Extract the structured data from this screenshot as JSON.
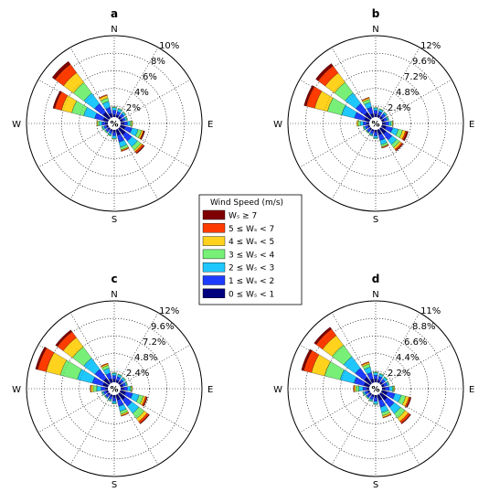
{
  "colors": {
    "bins": [
      "#00007f",
      "#1e3cff",
      "#1ec8ff",
      "#78f078",
      "#ffd21e",
      "#ff3c00",
      "#7f0000"
    ]
  },
  "legend": {
    "title": "Wind Speed (m/s)",
    "items": [
      {
        "label": "Wₛ ≥ 7",
        "bin": 6
      },
      {
        "label": "5 ≤ Wₛ < 7",
        "bin": 5
      },
      {
        "label": "4 ≤ Wₛ < 5",
        "bin": 4
      },
      {
        "label": "3 ≤ Wₛ < 4",
        "bin": 3
      },
      {
        "label": "2 ≤ Wₛ < 3",
        "bin": 2
      },
      {
        "label": "1 ≤ Wₛ < 2",
        "bin": 1
      },
      {
        "label": "0 ≤ Wₛ < 1",
        "bin": 0
      }
    ]
  },
  "directions": [
    "N",
    "E",
    "S",
    "W"
  ],
  "center_label": "%",
  "chart_data": [
    {
      "type": "windrose",
      "panel": "a",
      "ring_labels": [
        "2%",
        "4%",
        "6%",
        "8%",
        "10%"
      ],
      "rmax": 10,
      "sectors": [
        {
          "dir": 0,
          "cum": [
            1.0,
            1.5,
            1.8,
            1.9,
            1.9,
            1.9,
            1.9
          ]
        },
        {
          "dir": 22.5,
          "cum": [
            1.0,
            1.4,
            1.7,
            1.8,
            1.8,
            1.8,
            1.8
          ]
        },
        {
          "dir": 45,
          "cum": [
            1.0,
            1.4,
            1.6,
            1.7,
            1.7,
            1.7,
            1.7
          ]
        },
        {
          "dir": 67.5,
          "cum": [
            1.0,
            1.3,
            1.5,
            1.6,
            1.6,
            1.6,
            1.6
          ]
        },
        {
          "dir": 90,
          "cum": [
            1.1,
            1.5,
            1.8,
            2.0,
            2.1,
            2.1,
            2.1
          ]
        },
        {
          "dir": 112.5,
          "cum": [
            1.3,
            2.1,
            2.8,
            3.2,
            3.4,
            3.5,
            3.6
          ]
        },
        {
          "dir": 135,
          "cum": [
            1.6,
            2.5,
            3.3,
            3.8,
            4.0,
            4.2,
            4.3
          ]
        },
        {
          "dir": 157.5,
          "cum": [
            1.4,
            2.2,
            2.8,
            3.1,
            3.2,
            3.3,
            3.3
          ]
        },
        {
          "dir": 180,
          "cum": [
            1.0,
            1.4,
            1.7,
            1.8,
            1.8,
            1.8,
            1.8
          ]
        },
        {
          "dir": 202.5,
          "cum": [
            0.9,
            1.2,
            1.4,
            1.5,
            1.5,
            1.5,
            1.5
          ]
        },
        {
          "dir": 225,
          "cum": [
            0.9,
            1.2,
            1.3,
            1.4,
            1.4,
            1.4,
            1.4
          ]
        },
        {
          "dir": 247.5,
          "cum": [
            0.9,
            1.2,
            1.4,
            1.5,
            1.5,
            1.5,
            1.5
          ]
        },
        {
          "dir": 270,
          "cum": [
            1.0,
            1.4,
            1.7,
            1.9,
            2.0,
            2.0,
            2.0
          ]
        },
        {
          "dir": 292.5,
          "cum": [
            1.3,
            2.3,
            3.6,
            5.0,
            6.2,
            7.0,
            7.2
          ]
        },
        {
          "dir": 315,
          "cum": [
            1.6,
            2.8,
            4.3,
            5.8,
            7.2,
            8.4,
            8.8
          ]
        },
        {
          "dir": 337.5,
          "cum": [
            1.2,
            1.9,
            2.6,
            3.0,
            3.3,
            3.4,
            3.4
          ]
        }
      ]
    },
    {
      "type": "windrose",
      "panel": "b",
      "ring_labels": [
        "2.4%",
        "4.8%",
        "7.2%",
        "9.6%",
        "12%"
      ],
      "rmax": 12,
      "sectors": [
        {
          "dir": 0,
          "cum": [
            1.3,
            1.8,
            2.1,
            2.2,
            2.2,
            2.2,
            2.2
          ]
        },
        {
          "dir": 22.5,
          "cum": [
            1.2,
            1.7,
            2.0,
            2.1,
            2.1,
            2.1,
            2.1
          ]
        },
        {
          "dir": 45,
          "cum": [
            1.2,
            1.7,
            1.9,
            2.0,
            2.0,
            2.0,
            2.0
          ]
        },
        {
          "dir": 67.5,
          "cum": [
            1.2,
            1.6,
            1.8,
            1.9,
            1.9,
            1.9,
            1.9
          ]
        },
        {
          "dir": 90,
          "cum": [
            1.3,
            1.8,
            2.1,
            2.3,
            2.4,
            2.4,
            2.4
          ]
        },
        {
          "dir": 112.5,
          "cum": [
            1.5,
            2.4,
            3.2,
            3.8,
            4.2,
            4.4,
            4.6
          ]
        },
        {
          "dir": 135,
          "cum": [
            1.8,
            2.8,
            3.6,
            4.1,
            4.4,
            4.6,
            4.7
          ]
        },
        {
          "dir": 157.5,
          "cum": [
            1.6,
            2.4,
            3.0,
            3.3,
            3.4,
            3.5,
            3.5
          ]
        },
        {
          "dir": 180,
          "cum": [
            1.2,
            1.7,
            2.0,
            2.1,
            2.1,
            2.1,
            2.1
          ]
        },
        {
          "dir": 202.5,
          "cum": [
            1.1,
            1.5,
            1.7,
            1.8,
            1.8,
            1.8,
            1.8
          ]
        },
        {
          "dir": 225,
          "cum": [
            1.1,
            1.5,
            1.6,
            1.7,
            1.7,
            1.7,
            1.7
          ]
        },
        {
          "dir": 247.5,
          "cum": [
            1.1,
            1.5,
            1.7,
            1.8,
            1.8,
            1.8,
            1.8
          ]
        },
        {
          "dir": 270,
          "cum": [
            1.2,
            1.7,
            2.1,
            2.4,
            2.6,
            2.6,
            2.6
          ]
        },
        {
          "dir": 292.5,
          "cum": [
            1.6,
            3.0,
            4.8,
            6.8,
            8.6,
            9.8,
            10.1
          ]
        },
        {
          "dir": 315,
          "cum": [
            1.9,
            3.4,
            5.2,
            7.0,
            8.6,
            9.8,
            10.2
          ]
        },
        {
          "dir": 337.5,
          "cum": [
            1.4,
            2.3,
            3.0,
            3.4,
            3.6,
            3.7,
            3.7
          ]
        }
      ]
    },
    {
      "type": "windrose",
      "panel": "c",
      "ring_labels": [
        "2.4%",
        "4.8%",
        "7.2%",
        "9.6%",
        "12%"
      ],
      "rmax": 12,
      "sectors": [
        {
          "dir": 0,
          "cum": [
            1.3,
            1.8,
            2.1,
            2.2,
            2.2,
            2.2,
            2.2
          ]
        },
        {
          "dir": 22.5,
          "cum": [
            1.2,
            1.7,
            2.0,
            2.1,
            2.1,
            2.1,
            2.1
          ]
        },
        {
          "dir": 45,
          "cum": [
            1.2,
            1.6,
            1.9,
            2.0,
            2.0,
            2.0,
            2.0
          ]
        },
        {
          "dir": 67.5,
          "cum": [
            1.2,
            1.6,
            1.8,
            1.9,
            1.9,
            1.9,
            1.9
          ]
        },
        {
          "dir": 90,
          "cum": [
            1.3,
            1.8,
            2.2,
            2.4,
            2.5,
            2.5,
            2.5
          ]
        },
        {
          "dir": 112.5,
          "cum": [
            1.6,
            2.6,
            3.5,
            4.1,
            4.4,
            4.6,
            4.7
          ]
        },
        {
          "dir": 135,
          "cum": [
            1.9,
            3.0,
            4.2,
            5.1,
            5.6,
            5.9,
            6.0
          ]
        },
        {
          "dir": 157.5,
          "cum": [
            1.6,
            2.5,
            3.2,
            3.6,
            3.8,
            3.9,
            3.9
          ]
        },
        {
          "dir": 180,
          "cum": [
            1.2,
            1.7,
            2.0,
            2.1,
            2.1,
            2.1,
            2.1
          ]
        },
        {
          "dir": 202.5,
          "cum": [
            1.1,
            1.5,
            1.7,
            1.8,
            1.8,
            1.8,
            1.8
          ]
        },
        {
          "dir": 225,
          "cum": [
            1.1,
            1.5,
            1.6,
            1.7,
            1.7,
            1.7,
            1.7
          ]
        },
        {
          "dir": 247.5,
          "cum": [
            1.1,
            1.5,
            1.7,
            1.8,
            1.8,
            1.8,
            1.8
          ]
        },
        {
          "dir": 270,
          "cum": [
            1.2,
            1.8,
            2.4,
            2.9,
            3.2,
            3.3,
            3.3
          ]
        },
        {
          "dir": 292.5,
          "cum": [
            1.6,
            3.1,
            5.2,
            7.6,
            9.6,
            10.8,
            11.1
          ]
        },
        {
          "dir": 315,
          "cum": [
            1.8,
            3.3,
            5.2,
            7.1,
            8.7,
            9.7,
            10.0
          ]
        },
        {
          "dir": 337.5,
          "cum": [
            1.4,
            2.2,
            2.9,
            3.3,
            3.5,
            3.6,
            3.6
          ]
        }
      ]
    },
    {
      "type": "windrose",
      "panel": "d",
      "ring_labels": [
        "2.2%",
        "4.4%",
        "6.6%",
        "8.8%",
        "11%"
      ],
      "rmax": 11,
      "sectors": [
        {
          "dir": 0,
          "cum": [
            1.2,
            1.7,
            2.0,
            2.1,
            2.1,
            2.1,
            2.1
          ]
        },
        {
          "dir": 22.5,
          "cum": [
            1.1,
            1.6,
            1.9,
            2.0,
            2.0,
            2.0,
            2.0
          ]
        },
        {
          "dir": 45,
          "cum": [
            1.1,
            1.5,
            1.8,
            1.9,
            1.9,
            1.9,
            1.9
          ]
        },
        {
          "dir": 67.5,
          "cum": [
            1.1,
            1.5,
            1.7,
            1.8,
            1.8,
            1.8,
            1.8
          ]
        },
        {
          "dir": 90,
          "cum": [
            1.2,
            1.7,
            2.1,
            2.3,
            2.4,
            2.4,
            2.4
          ]
        },
        {
          "dir": 112.5,
          "cum": [
            1.5,
            2.5,
            3.3,
            3.9,
            4.3,
            4.5,
            4.6
          ]
        },
        {
          "dir": 135,
          "cum": [
            1.8,
            2.9,
            3.9,
            4.6,
            5.1,
            5.4,
            5.5
          ]
        },
        {
          "dir": 157.5,
          "cum": [
            1.5,
            2.4,
            3.1,
            3.5,
            3.7,
            3.8,
            3.8
          ]
        },
        {
          "dir": 180,
          "cum": [
            1.1,
            1.6,
            1.9,
            2.0,
            2.0,
            2.0,
            2.0
          ]
        },
        {
          "dir": 202.5,
          "cum": [
            1.0,
            1.4,
            1.6,
            1.7,
            1.7,
            1.7,
            1.7
          ]
        },
        {
          "dir": 225,
          "cum": [
            1.0,
            1.4,
            1.5,
            1.6,
            1.6,
            1.6,
            1.6
          ]
        },
        {
          "dir": 247.5,
          "cum": [
            1.0,
            1.4,
            1.6,
            1.7,
            1.7,
            1.7,
            1.7
          ]
        },
        {
          "dir": 270,
          "cum": [
            1.1,
            1.6,
            2.1,
            2.5,
            2.7,
            2.8,
            2.8
          ]
        },
        {
          "dir": 292.5,
          "cum": [
            1.5,
            2.8,
            4.6,
            6.6,
            8.3,
            9.3,
            9.6
          ]
        },
        {
          "dir": 315,
          "cum": [
            1.8,
            3.2,
            5.0,
            6.8,
            8.3,
            9.3,
            9.6
          ]
        },
        {
          "dir": 337.5,
          "cum": [
            1.3,
            2.1,
            2.8,
            3.2,
            3.4,
            3.5,
            3.5
          ]
        }
      ]
    }
  ]
}
